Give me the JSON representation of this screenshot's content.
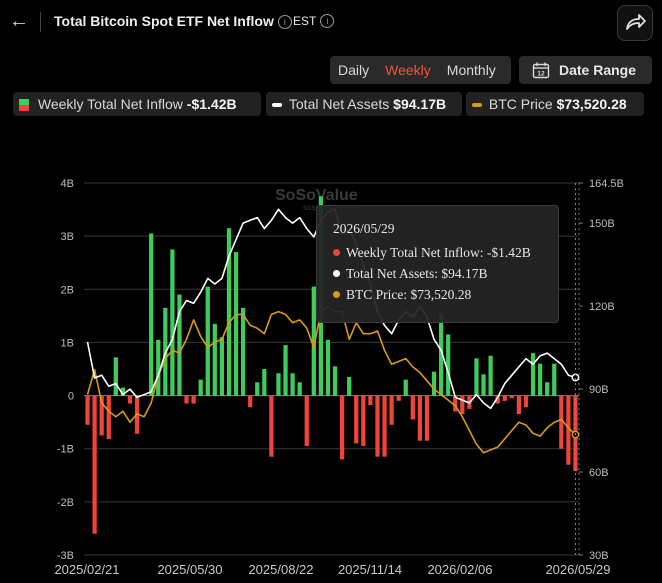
{
  "header": {
    "title": "Total Bitcoin Spot ETF Net Inflow",
    "timezone": "EST"
  },
  "controls": {
    "periods": [
      "Daily",
      "Weekly",
      "Monthly"
    ],
    "active_period": "Weekly",
    "date_range_label": "Date Range"
  },
  "legend": {
    "inflow": {
      "label": "Weekly Total Net Inflow",
      "value": "-$1.42B"
    },
    "assets": {
      "label": "Total Net Assets",
      "value": "$94.17B"
    },
    "btc": {
      "label": "BTC Price",
      "value": "$73,520.28"
    }
  },
  "watermark": {
    "name": "SoSoValue",
    "site": "sosovalue.com"
  },
  "tooltip": {
    "date": "2026/05/29",
    "inflow": "Weekly Total Net Inflow: -$1.42B",
    "assets": "Total Net Assets: $94.17B",
    "btc": "BTC Price: $73,520.28"
  },
  "colors": {
    "positive": "#3ecc5a",
    "negative": "#f0433a",
    "assets": "#ffffff",
    "btc": "#d99a17",
    "active": "#f0533a"
  },
  "icons": {
    "back": "arrow-left-icon",
    "info": "info-icon",
    "share": "share-icon",
    "calendar": "calendar-icon"
  },
  "chart_data": {
    "type": "bar",
    "left_axis": {
      "ticks": [
        "4B",
        "3B",
        "2B",
        "1B",
        "0",
        "-1B",
        "-2B",
        "-3B"
      ],
      "range": [
        -3,
        4
      ]
    },
    "right_axis": {
      "ticks": [
        "164.5B",
        "150B",
        "120B",
        "90B",
        "60B",
        "30B"
      ],
      "range": [
        30,
        164.5
      ]
    },
    "x_ticks": [
      "2025/02/21",
      "2025/05/30",
      "2025/08/22",
      "2025/11/14",
      "2026/02/06",
      "2026/05/29"
    ],
    "series": [
      {
        "name": "Weekly Total Net Inflow",
        "values": [
          -0.55,
          -2.6,
          -0.75,
          -0.82,
          0.72,
          0.15,
          -0.15,
          -0.72,
          0,
          3.05,
          1.05,
          1.65,
          2.75,
          1.9,
          -0.15,
          -0.15,
          0.3,
          2.05,
          1.35,
          1.1,
          3.15,
          2.7,
          1.65,
          -0.22,
          0.25,
          0.5,
          -1.15,
          0.42,
          0.95,
          0.42,
          0.25,
          -0.95,
          2.05,
          3.75,
          1.05,
          0.55,
          -1.2,
          0.35,
          -0.9,
          -0.95,
          -0.18,
          -1.15,
          -1.15,
          -0.55,
          -0.1,
          0.3,
          -0.45,
          -0.85,
          -0.85,
          0.45,
          1.55,
          1.15,
          -0.3,
          -0.35,
          -0.25,
          0.7,
          0.4,
          0.75,
          -0.15,
          -0.1,
          -0.05,
          -0.35,
          -0.22,
          0.8,
          0.6,
          0.25,
          0.6,
          -1.0,
          -1.3,
          -1.42
        ]
      },
      {
        "name": "Total Net Assets",
        "values": [
          107,
          94,
          95,
          91,
          92,
          88,
          90,
          87,
          88,
          89,
          95,
          103,
          108,
          118,
          122,
          121,
          125,
          130,
          128,
          130,
          138,
          144,
          150,
          151,
          152,
          148,
          151,
          155,
          152,
          150,
          152,
          148,
          145,
          151,
          154,
          155,
          146,
          148,
          142,
          135,
          128,
          118,
          113,
          110,
          115,
          118,
          116,
          120,
          116,
          108,
          104,
          96,
          87,
          86,
          85,
          88,
          85,
          83,
          87,
          92,
          95,
          98,
          101,
          99,
          102,
          103,
          101,
          99,
          95,
          94.17
        ]
      },
      {
        "name": "BTC Price",
        "values": [
          88,
          97,
          85,
          82,
          80,
          82,
          78,
          81,
          80,
          85,
          95,
          101,
          104,
          103,
          108,
          115,
          109,
          105,
          107,
          108,
          114,
          117,
          117,
          113,
          112,
          110,
          117,
          118,
          117,
          114,
          115,
          112,
          105,
          118,
          120,
          118,
          118,
          108,
          114,
          110,
          110,
          111,
          104,
          99,
          100,
          101,
          98,
          96,
          93,
          90,
          88,
          86,
          84,
          80,
          75,
          70,
          67,
          68,
          69,
          72,
          75,
          78,
          77,
          74,
          73,
          76,
          78,
          79,
          76,
          73.52
        ]
      }
    ],
    "y_label": "",
    "x_label": "",
    "title": "Total Bitcoin Spot ETF Net Inflow"
  }
}
